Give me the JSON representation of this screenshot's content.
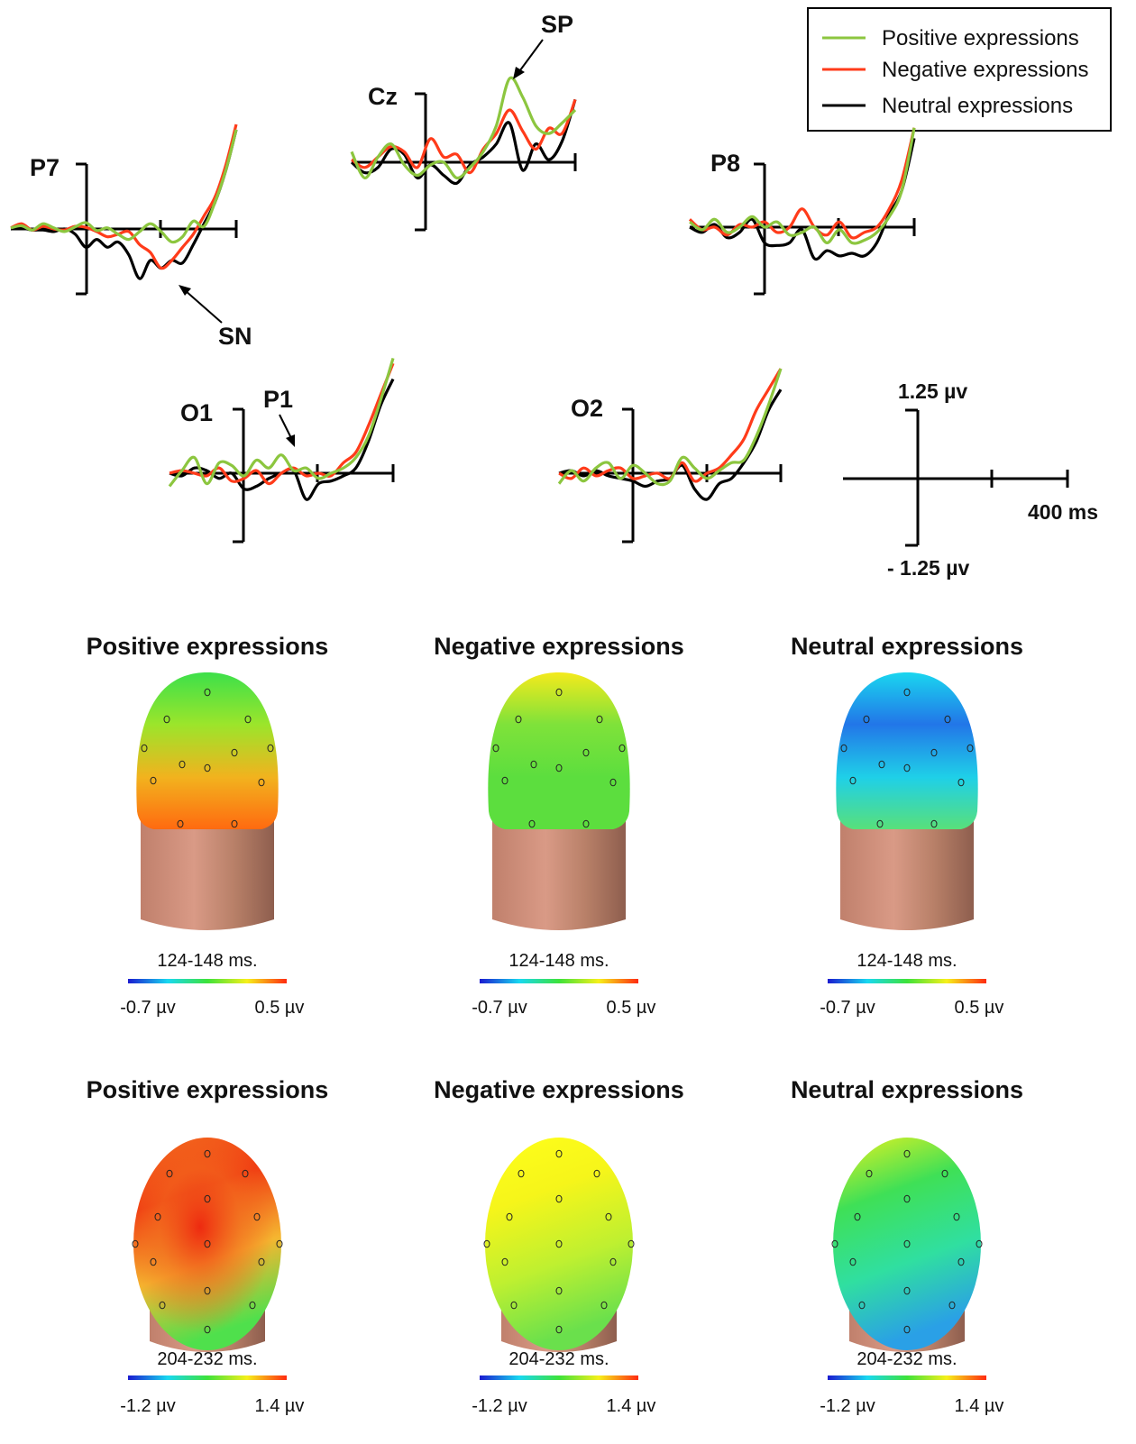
{
  "chart_data": {
    "type": "line",
    "panel": "ERP waveforms",
    "legend": {
      "placement": "top-right",
      "entries": [
        {
          "label": "Positive expressions",
          "color": "#8cc63f"
        },
        {
          "label": "Negative expressions",
          "color": "#ff3b1a"
        },
        {
          "label": "Neutral expressions",
          "color": "#000000"
        }
      ]
    },
    "electrodes": [
      {
        "name": "P7",
        "series": {
          "positive": [
            0.02,
            0.06,
            -0.02,
            0.1,
            0.02,
            -0.05,
            0.04,
            0.12,
            -0.03,
            0.02,
            -0.1,
            -0.2,
            -0.05,
            0.1,
            -0.05,
            -0.25,
            -0.15,
            0.15,
            0.05,
            0.5,
            1.1,
            1.9
          ],
          "negative": [
            0.02,
            0.1,
            -0.02,
            0.05,
            0.0,
            -0.02,
            0.05,
            0.03,
            -0.05,
            -0.15,
            -0.1,
            -0.05,
            -0.3,
            -0.45,
            -0.75,
            -0.6,
            -0.35,
            -0.1,
            0.25,
            0.6,
            1.2,
            2.0
          ],
          "neutral": [
            0.0,
            0.02,
            -0.02,
            -0.02,
            -0.05,
            0.0,
            -0.1,
            -0.35,
            -0.2,
            -0.35,
            -0.25,
            -0.5,
            -0.95,
            -0.6,
            -0.75,
            -0.6,
            -0.65,
            -0.3,
            0.1,
            0.5,
            1.1,
            1.9
          ]
        }
      },
      {
        "name": "Cz",
        "series": {
          "positive": [
            0.2,
            -0.3,
            0.1,
            0.35,
            -0.05,
            -0.25,
            -0.05,
            0.0,
            -0.3,
            -0.1,
            0.2,
            0.7,
            1.6,
            1.25,
            0.7,
            0.55,
            0.75,
            1.0
          ],
          "negative": [
            0.05,
            -0.1,
            0.1,
            0.3,
            0.2,
            -0.1,
            0.45,
            0.1,
            0.15,
            -0.2,
            0.25,
            0.55,
            1.0,
            0.6,
            0.25,
            0.65,
            0.55,
            1.2
          ],
          "neutral": [
            0.0,
            -0.2,
            -0.1,
            0.25,
            0.15,
            -0.3,
            -0.05,
            -0.25,
            -0.4,
            -0.05,
            0.1,
            0.35,
            0.75,
            -0.15,
            0.35,
            0.05,
            0.4,
            1.2
          ]
        }
      },
      {
        "name": "P8",
        "series": {
          "positive": [
            0.1,
            -0.05,
            0.15,
            -0.1,
            0.0,
            0.2,
            0.0,
            0.1,
            -0.15,
            -0.1,
            0.0,
            -0.3,
            -0.05,
            -0.3,
            -0.25,
            -0.1,
            0.2,
            0.7,
            1.9
          ],
          "negative": [
            0.15,
            -0.05,
            0.0,
            -0.15,
            0.05,
            0.0,
            0.1,
            -0.1,
            0.0,
            0.35,
            0.0,
            -0.15,
            0.1,
            -0.2,
            -0.1,
            0.0,
            0.35,
            0.9,
            1.9
          ],
          "neutral": [
            0.0,
            -0.1,
            0.05,
            -0.2,
            -0.1,
            0.15,
            -0.3,
            -0.35,
            -0.3,
            -0.05,
            -0.6,
            -0.45,
            -0.55,
            -0.5,
            -0.55,
            -0.3,
            0.25,
            0.7,
            1.7
          ]
        }
      },
      {
        "name": "O1",
        "series": {
          "positive": [
            -0.25,
            0.05,
            0.3,
            -0.2,
            0.2,
            0.15,
            -0.05,
            0.25,
            0.1,
            0.35,
            0.05,
            0.1,
            -0.1,
            0.0,
            0.1,
            0.3,
            0.7,
            1.4,
            2.2
          ],
          "negative": [
            0.0,
            0.05,
            0.0,
            -0.05,
            0.1,
            -0.15,
            -0.1,
            0.05,
            -0.2,
            0.0,
            0.1,
            -0.05,
            0.0,
            -0.05,
            0.2,
            0.4,
            0.9,
            1.5,
            2.1
          ],
          "neutral": [
            0.0,
            -0.05,
            0.1,
            0.05,
            -0.1,
            0.0,
            -0.3,
            -0.25,
            -0.1,
            0.0,
            0.05,
            -0.5,
            -0.2,
            -0.15,
            -0.05,
            0.1,
            0.6,
            1.3,
            1.8
          ]
        }
      },
      {
        "name": "O2",
        "series": {
          "positive": [
            -0.2,
            0.05,
            -0.15,
            0.1,
            0.2,
            -0.1,
            0.15,
            0.0,
            -0.2,
            -0.15,
            0.3,
            0.1,
            -0.1,
            0.05,
            0.2,
            0.25,
            0.7,
            1.3,
            2.0
          ],
          "negative": [
            0.0,
            -0.1,
            0.1,
            -0.05,
            0.05,
            0.1,
            -0.1,
            -0.05,
            0.0,
            -0.1,
            0.2,
            -0.15,
            0.0,
            0.1,
            0.35,
            0.65,
            1.2,
            1.6,
            2.0
          ],
          "neutral": [
            0.0,
            0.05,
            -0.05,
            0.05,
            -0.05,
            -0.1,
            -0.15,
            -0.25,
            -0.15,
            -0.1,
            0.15,
            -0.3,
            -0.5,
            -0.2,
            -0.1,
            0.2,
            0.6,
            1.2,
            1.6
          ]
        }
      }
    ],
    "annotations": [
      "SP",
      "SN",
      "P1"
    ],
    "scale_bar": {
      "top": "1.25 µv",
      "bottom": "- 1.25 µv",
      "time": "400 ms"
    }
  },
  "topomaps": {
    "rows": [
      {
        "window": "124-148 ms.",
        "min": "-0.7 µv",
        "max": "0.5 µv",
        "maps": [
          {
            "title": "Positive expressions",
            "colors": [
              "#3de04a",
              "#9be52b",
              "#f2b21e",
              "#ff6a10"
            ]
          },
          {
            "title": "Negative expressions",
            "colors": [
              "#f4ea1c",
              "#7fe23a",
              "#5cde3e",
              "#5cde3e"
            ]
          },
          {
            "title": "Neutral expressions",
            "colors": [
              "#1ad6ef",
              "#2276e8",
              "#1fd0e8",
              "#58e07a"
            ]
          }
        ]
      },
      {
        "window": "204-232 ms.",
        "min": "-1.2 µv",
        "max": "1.4 µv",
        "maps": [
          {
            "title": "Positive expressions",
            "colors": [
              "#f36a1e",
              "#f03a12",
              "#f5b630",
              "#4fe04c"
            ]
          },
          {
            "title": "Negative expressions",
            "colors": [
              "#ffff1a",
              "#f6f51a",
              "#bff030",
              "#6ae04c"
            ]
          },
          {
            "title": "Neutral expressions",
            "colors": [
              "#e8f21f",
              "#3fe056",
              "#30dfa0",
              "#2aa0e6"
            ]
          }
        ]
      }
    ]
  }
}
